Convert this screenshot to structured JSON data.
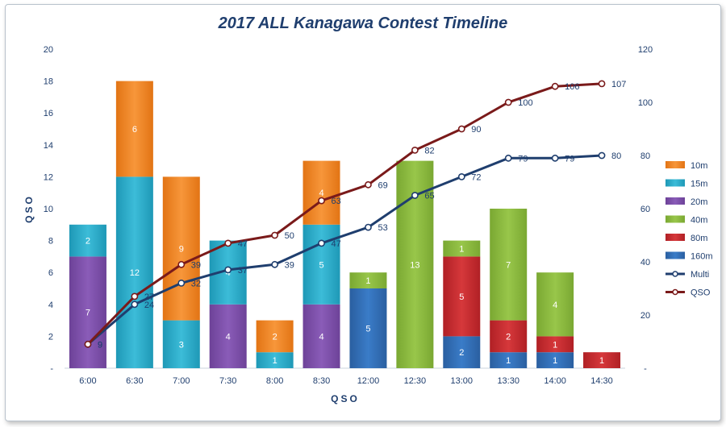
{
  "chart_data": {
    "type": "bar",
    "title": "2017 ALL Kanagawa Contest Timeline",
    "xlabel": "QSO",
    "ylabel": "QSO",
    "ylim": [
      0,
      20
    ],
    "y2lim": [
      0,
      120
    ],
    "y_ticks": [
      "-",
      "2",
      "4",
      "6",
      "8",
      "10",
      "12",
      "14",
      "16",
      "18",
      "20"
    ],
    "y2_ticks": [
      "-",
      "20",
      "40",
      "60",
      "80",
      "100",
      "120"
    ],
    "categories": [
      "6:00",
      "6:30",
      "7:00",
      "7:30",
      "8:00",
      "8:30",
      "12:00",
      "12:30",
      "13:00",
      "13:30",
      "14:00",
      "14:30"
    ],
    "stacked_series": [
      {
        "name": "160m",
        "color": "#2e6db4",
        "values": [
          0,
          0,
          0,
          0,
          0,
          0,
          5,
          0,
          2,
          1,
          1,
          0
        ]
      },
      {
        "name": "80m",
        "color": "#c8282b",
        "values": [
          0,
          0,
          0,
          0,
          0,
          0,
          0,
          0,
          5,
          2,
          1,
          1
        ]
      },
      {
        "name": "40m",
        "color": "#8ab83c",
        "values": [
          0,
          0,
          0,
          0,
          0,
          0,
          1,
          13,
          1,
          7,
          4,
          0
        ]
      },
      {
        "name": "20m",
        "color": "#7b4fa6",
        "values": [
          7,
          0,
          0,
          4,
          0,
          4,
          0,
          0,
          0,
          0,
          0,
          0
        ]
      },
      {
        "name": "15m",
        "color": "#2aaac8",
        "values": [
          2,
          12,
          3,
          4,
          1,
          5,
          0,
          0,
          0,
          0,
          0,
          0
        ]
      },
      {
        "name": "10m",
        "color": "#f0841e",
        "values": [
          0,
          6,
          9,
          0,
          2,
          4,
          0,
          0,
          0,
          0,
          0,
          0
        ]
      }
    ],
    "line_series": [
      {
        "name": "Multi",
        "color": "#1f3e6e",
        "values": [
          9,
          24,
          32,
          37,
          39,
          47,
          53,
          65,
          72,
          79,
          79,
          80
        ]
      },
      {
        "name": "QSO",
        "color": "#7a1a1a",
        "values": [
          9,
          27,
          39,
          47,
          50,
          63,
          69,
          82,
          90,
          100,
          106,
          107
        ]
      }
    ],
    "legend": {
      "position": "right",
      "entries": [
        "10m",
        "15m",
        "20m",
        "40m",
        "80m",
        "160m",
        "Multi",
        "QSO"
      ]
    },
    "grid": false
  }
}
